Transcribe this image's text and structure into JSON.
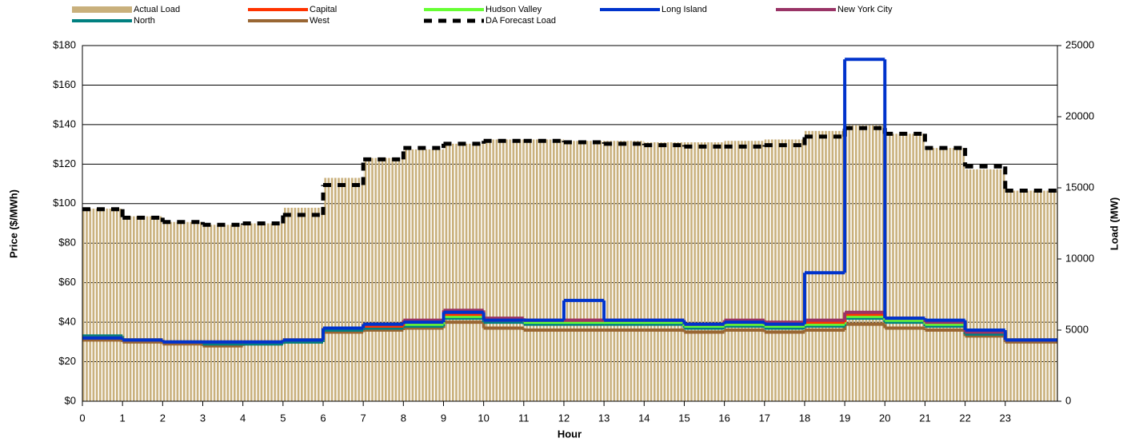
{
  "chart_data": {
    "type": "combo",
    "xlabel": "Hour",
    "ylabel": "Price ($/MWh)",
    "y2label": "Load (MW)",
    "x": [
      0,
      1,
      2,
      3,
      4,
      5,
      6,
      7,
      8,
      9,
      10,
      11,
      12,
      13,
      14,
      15,
      16,
      17,
      18,
      19,
      20,
      21,
      22,
      23
    ],
    "xlim": [
      0,
      24.3
    ],
    "xticks": [
      0,
      1,
      2,
      3,
      4,
      5,
      6,
      7,
      8,
      9,
      10,
      11,
      12,
      13,
      14,
      15,
      16,
      17,
      18,
      19,
      20,
      21,
      22,
      23
    ],
    "ylim": [
      0,
      180
    ],
    "yticks": [
      {
        "value": 0,
        "label": "$0"
      },
      {
        "value": 20,
        "label": "$20"
      },
      {
        "value": 40,
        "label": "$40"
      },
      {
        "value": 60,
        "label": "$60"
      },
      {
        "value": 80,
        "label": "$80"
      },
      {
        "value": 100,
        "label": "$100"
      },
      {
        "value": 120,
        "label": "$120"
      },
      {
        "value": 140,
        "label": "$140"
      },
      {
        "value": 160,
        "label": "$160"
      },
      {
        "value": 180,
        "label": "$180"
      }
    ],
    "y2lim": [
      0,
      25000
    ],
    "y2ticks": [
      0,
      5000,
      10000,
      15000,
      20000,
      25000
    ],
    "grid": true,
    "legend": "top",
    "series": [
      {
        "name": "Actual Load",
        "color": "#c9b07c",
        "axis": "y2",
        "mark": "bar",
        "values": [
          13540,
          13000,
          12600,
          12400,
          12500,
          13600,
          15700,
          17100,
          17700,
          18100,
          18400,
          18400,
          18300,
          18300,
          18200,
          18200,
          18300,
          18400,
          19000,
          19400,
          18800,
          17800,
          16300,
          14800
        ]
      },
      {
        "name": "Capital",
        "color": "#ff3300",
        "values": [
          32,
          31,
          30,
          30,
          30,
          31,
          37,
          38,
          40,
          44,
          41,
          41,
          41,
          41,
          41,
          39,
          40,
          39,
          40,
          44,
          42,
          40,
          35,
          31
        ]
      },
      {
        "name": "Hudson Valley",
        "color": "#66ff33",
        "values": [
          32,
          31,
          30,
          30,
          30,
          31,
          37,
          38,
          39,
          43,
          41,
          40,
          40,
          40,
          40,
          38,
          39,
          38,
          39,
          43,
          41,
          39,
          35,
          31
        ]
      },
      {
        "name": "Long Island",
        "color": "#0033cc",
        "values": [
          32,
          31,
          30,
          30,
          30,
          31,
          37,
          39,
          40,
          45,
          41,
          41,
          51,
          41,
          41,
          39,
          40,
          39,
          65,
          173,
          42,
          41,
          36,
          31
        ]
      },
      {
        "name": "New York City",
        "color": "#993366",
        "values": [
          32,
          31,
          30,
          30,
          30,
          31,
          37,
          39,
          41,
          46,
          42,
          41,
          41,
          41,
          41,
          39,
          41,
          40,
          41,
          45,
          42,
          40,
          35,
          31
        ]
      },
      {
        "name": "North",
        "color": "#008080",
        "values": [
          33,
          31,
          30,
          29,
          29,
          30,
          36,
          37,
          38,
          42,
          40,
          39,
          39,
          39,
          39,
          37,
          38,
          37,
          38,
          42,
          40,
          38,
          34,
          31
        ]
      },
      {
        "name": "West",
        "color": "#996633",
        "values": [
          31,
          30,
          29,
          28,
          29,
          30,
          35,
          36,
          37,
          40,
          37,
          36,
          36,
          36,
          36,
          35,
          36,
          35,
          36,
          39,
          37,
          36,
          33,
          30
        ]
      },
      {
        "name": "DA Forecast Load",
        "color": "#000000",
        "axis": "y2",
        "dash": true,
        "values": [
          13500,
          12900,
          12600,
          12400,
          12500,
          13100,
          15200,
          17000,
          17800,
          18100,
          18300,
          18300,
          18200,
          18100,
          18000,
          17900,
          17900,
          18000,
          18600,
          19200,
          18800,
          17800,
          16500,
          14800
        ]
      }
    ]
  }
}
